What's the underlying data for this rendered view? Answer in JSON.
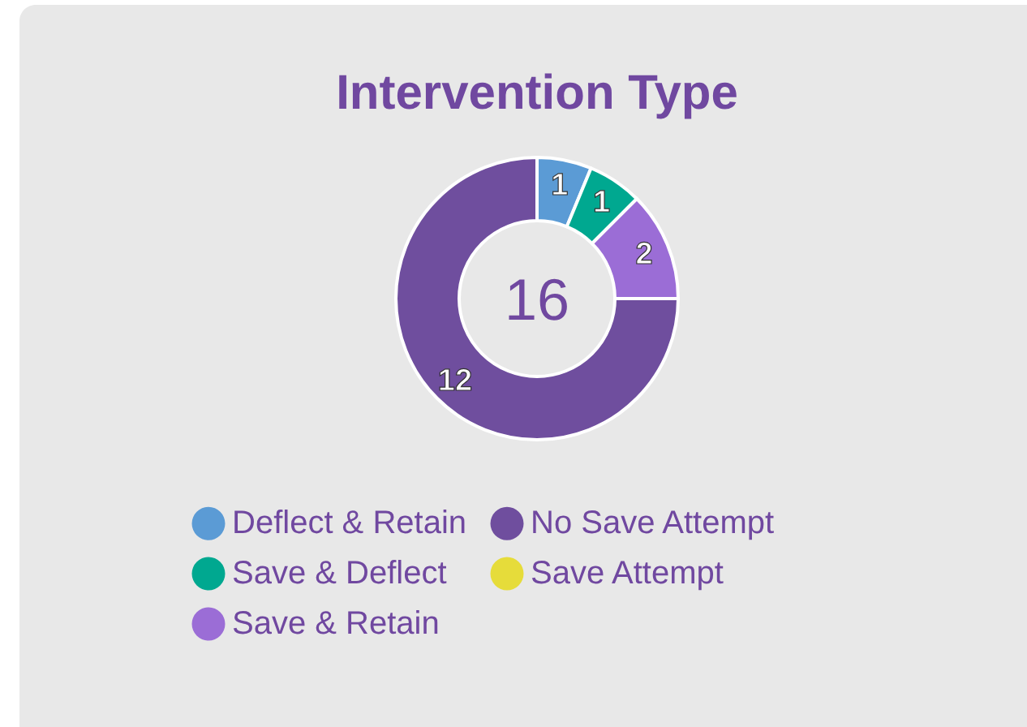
{
  "chart_data": {
    "type": "donut",
    "title": "Intervention Type",
    "categories": [
      "Deflect & Retain",
      "Save & Deflect",
      "Save & Retain",
      "No Save Attempt",
      "Save Attempt"
    ],
    "values": [
      1,
      1,
      2,
      12,
      0
    ],
    "colors": [
      "#5b9bd5",
      "#00a890",
      "#9b6dd6",
      "#6f4e9e",
      "#e6dc3a"
    ],
    "data_labels": true,
    "legend": "bottom",
    "annotations": [
      "16"
    ]
  }
}
